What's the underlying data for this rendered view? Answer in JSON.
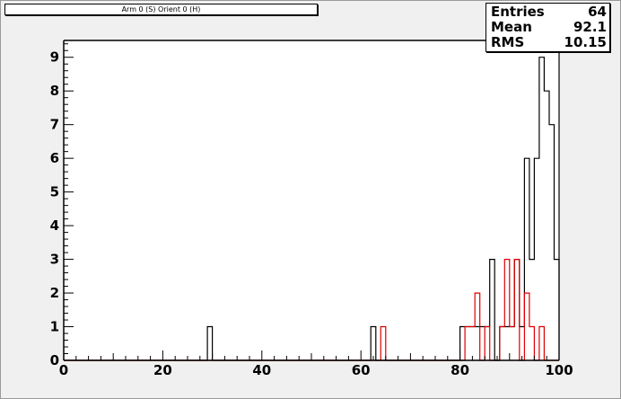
{
  "title": "Arm 0 (S) Orient 0 (H)",
  "stats": [
    {
      "label": "Entries",
      "value": "64"
    },
    {
      "label": "Mean",
      "value": "92.1"
    },
    {
      "label": "RMS",
      "value": "10.15"
    }
  ],
  "colors": {
    "frame_background": "#f0f0f0",
    "plot_background": "#ffffff",
    "series_black": "#000000",
    "series_red": "#dd0000"
  },
  "chart_data": {
    "type": "histogram",
    "title": "Arm 0 (S) Orient 0 (H)",
    "xlabel": "",
    "ylabel": "",
    "xlim": [
      0,
      100
    ],
    "ylim": [
      0,
      9.5
    ],
    "x_ticks": [
      "0",
      "20",
      "40",
      "60",
      "80",
      "100"
    ],
    "y_ticks": [
      "0",
      "1",
      "2",
      "3",
      "4",
      "5",
      "6",
      "7",
      "8",
      "9"
    ],
    "bin_width": 1,
    "grid": false,
    "series": [
      {
        "color": "#000000",
        "bins": [
          {
            "x": 29,
            "y": 1
          },
          {
            "x": 62,
            "y": 1
          },
          {
            "x": 80,
            "y": 1
          },
          {
            "x": 81,
            "y": 1
          },
          {
            "x": 82,
            "y": 1
          },
          {
            "x": 83,
            "y": 1
          },
          {
            "x": 84,
            "y": 1
          },
          {
            "x": 85,
            "y": 1
          },
          {
            "x": 86,
            "y": 3
          },
          {
            "x": 88,
            "y": 1
          },
          {
            "x": 89,
            "y": 1
          },
          {
            "x": 90,
            "y": 1
          },
          {
            "x": 91,
            "y": 3
          },
          {
            "x": 92,
            "y": 1
          },
          {
            "x": 93,
            "y": 6
          },
          {
            "x": 94,
            "y": 3
          },
          {
            "x": 95,
            "y": 6
          },
          {
            "x": 96,
            "y": 9
          },
          {
            "x": 97,
            "y": 8
          },
          {
            "x": 98,
            "y": 7
          },
          {
            "x": 99,
            "y": 3
          }
        ],
        "overflow_above_top": [
          100
        ]
      },
      {
        "color": "#dd0000",
        "bins": [
          {
            "x": 64,
            "y": 1
          },
          {
            "x": 81,
            "y": 1
          },
          {
            "x": 82,
            "y": 1
          },
          {
            "x": 83,
            "y": 2
          },
          {
            "x": 85,
            "y": 1
          },
          {
            "x": 88,
            "y": 1
          },
          {
            "x": 89,
            "y": 3
          },
          {
            "x": 90,
            "y": 1
          },
          {
            "x": 91,
            "y": 3
          },
          {
            "x": 93,
            "y": 2
          },
          {
            "x": 94,
            "y": 1
          },
          {
            "x": 96,
            "y": 1
          }
        ]
      }
    ]
  }
}
